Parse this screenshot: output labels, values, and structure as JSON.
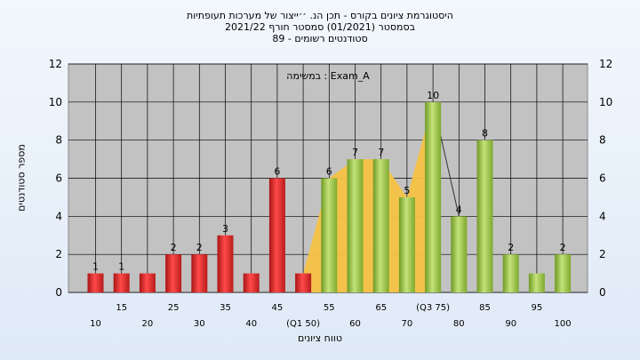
{
  "header": {
    "line1": "היסטוגרמת ציונים בקורס - תכן הנ. ׳׳ייצור של מערכות תעופתיות",
    "line2": "בסמסטר  (01/2021)  סמסטר חורף  2021/22",
    "line3": "סטודנטים רשומים - 89"
  },
  "chart_data": {
    "type": "bar",
    "exam_label": "במשימה : Exam_A",
    "xlabel": "טווח ציונים",
    "ylabel": "מספר סטודנטים",
    "ylim": [
      0,
      12
    ],
    "yticks": [
      0,
      2,
      4,
      6,
      8,
      10,
      12
    ],
    "grid": true,
    "categories": [
      "10",
      "15",
      "20",
      "25",
      "30",
      "35",
      "40",
      "45",
      "(Q1 50)",
      "55",
      "60",
      "65",
      "70",
      "(Q3 75)",
      "80",
      "85",
      "90",
      "95",
      "100"
    ],
    "values": [
      1,
      1,
      1,
      2,
      2,
      3,
      1,
      6,
      1,
      6,
      7,
      7,
      5,
      10,
      4,
      8,
      2,
      1,
      2
    ],
    "value_labels": [
      "1",
      "1",
      "",
      "2",
      "2",
      "3",
      "",
      "6",
      "",
      "6",
      "7",
      "7",
      "5",
      "10",
      "4",
      "8",
      "2",
      "",
      "2"
    ],
    "bar_colors": [
      "red",
      "red",
      "red",
      "red",
      "red",
      "red",
      "red",
      "red",
      "red",
      "green",
      "green",
      "green",
      "green",
      "green",
      "green",
      "green",
      "green",
      "green",
      "green"
    ],
    "colors": {
      "red": "#e52a2a",
      "green": "#9cc843",
      "interquartile": "#f6c244",
      "plot_bg": "#c2c2c2"
    }
  }
}
